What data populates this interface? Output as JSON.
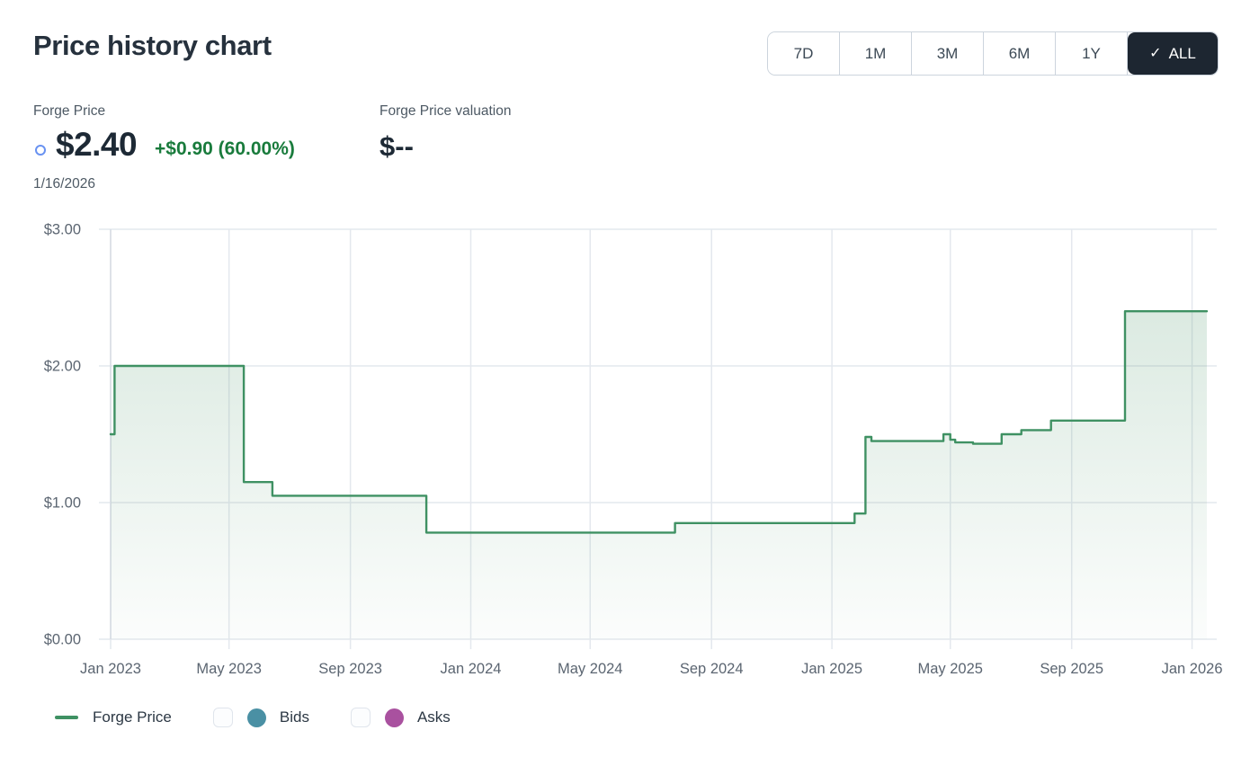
{
  "header": {
    "title": "Price history chart",
    "selected_check": "✓",
    "ranges": [
      {
        "label": "7D",
        "selected": false
      },
      {
        "label": "1M",
        "selected": false
      },
      {
        "label": "3M",
        "selected": false
      },
      {
        "label": "6M",
        "selected": false
      },
      {
        "label": "1Y",
        "selected": false
      },
      {
        "label": "ALL",
        "selected": true
      }
    ]
  },
  "stats": {
    "price_label": "Forge Price",
    "price_value": "$2.40",
    "price_change": "+$0.90 (60.00%)",
    "price_date": "1/16/2026",
    "valuation_label": "Forge Price valuation",
    "valuation_value": "$--"
  },
  "colors": {
    "positive_green": "#197b3c",
    "marker_blue": "#6992f1",
    "selected_range_bg": "#1d2631",
    "line_green": "#3f9163",
    "bids_teal": "#4a90a4",
    "asks_magenta": "#a9519f"
  },
  "chart_data": {
    "type": "area",
    "step": true,
    "title": "Price history chart",
    "xlabel": "",
    "ylabel": "",
    "ylim": [
      0,
      3
    ],
    "grid": true,
    "legend_position": "bottom",
    "x_domain": [
      "2023-01-01",
      "2026-01-26"
    ],
    "y_ticks": [
      {
        "label": "$0.00",
        "value": 0
      },
      {
        "label": "$1.00",
        "value": 1
      },
      {
        "label": "$2.00",
        "value": 2
      },
      {
        "label": "$3.00",
        "value": 3
      }
    ],
    "x_ticks": [
      {
        "label": "Jan 2023",
        "date": "2023-01-01"
      },
      {
        "label": "May 2023",
        "date": "2023-05-01"
      },
      {
        "label": "Sep 2023",
        "date": "2023-09-01"
      },
      {
        "label": "Jan 2024",
        "date": "2024-01-01"
      },
      {
        "label": "May 2024",
        "date": "2024-05-01"
      },
      {
        "label": "Sep 2024",
        "date": "2024-09-01"
      },
      {
        "label": "Jan 2025",
        "date": "2025-01-01"
      },
      {
        "label": "May 2025",
        "date": "2025-05-01"
      },
      {
        "label": "Sep 2025",
        "date": "2025-09-01"
      },
      {
        "label": "Jan 2026",
        "date": "2026-01-01"
      }
    ],
    "series": [
      {
        "name": "Forge Price",
        "color": "#3f9163",
        "points": [
          [
            "2023-01-01",
            1.5
          ],
          [
            "2023-01-05",
            2.0
          ],
          [
            "2023-05-16",
            1.15
          ],
          [
            "2023-06-14",
            1.05
          ],
          [
            "2023-11-17",
            0.78
          ],
          [
            "2024-07-26",
            0.85
          ],
          [
            "2025-01-24",
            0.92
          ],
          [
            "2025-02-04",
            1.48
          ],
          [
            "2025-02-10",
            1.45
          ],
          [
            "2025-04-24",
            1.5
          ],
          [
            "2025-05-01",
            1.46
          ],
          [
            "2025-05-06",
            1.44
          ],
          [
            "2025-05-24",
            1.43
          ],
          [
            "2025-06-22",
            1.5
          ],
          [
            "2025-07-12",
            1.53
          ],
          [
            "2025-08-11",
            1.6
          ],
          [
            "2025-10-25",
            2.4
          ],
          [
            "2026-01-16",
            2.4
          ]
        ]
      }
    ],
    "colors": {
      "line": "#3f9163",
      "fill": "#4a9468",
      "grid": "#e4e8ee",
      "axis": "#d7dce4",
      "tick_text": "#5b6571"
    }
  },
  "legend": {
    "items": [
      {
        "label": "Forge Price",
        "type": "line",
        "color": "#3f9163",
        "checkbox": false,
        "checked": false
      },
      {
        "label": "Bids",
        "type": "dot",
        "color": "#4a90a4",
        "checkbox": true,
        "checked": false
      },
      {
        "label": "Asks",
        "type": "dot",
        "color": "#a9519f",
        "checkbox": true,
        "checked": false
      }
    ]
  }
}
